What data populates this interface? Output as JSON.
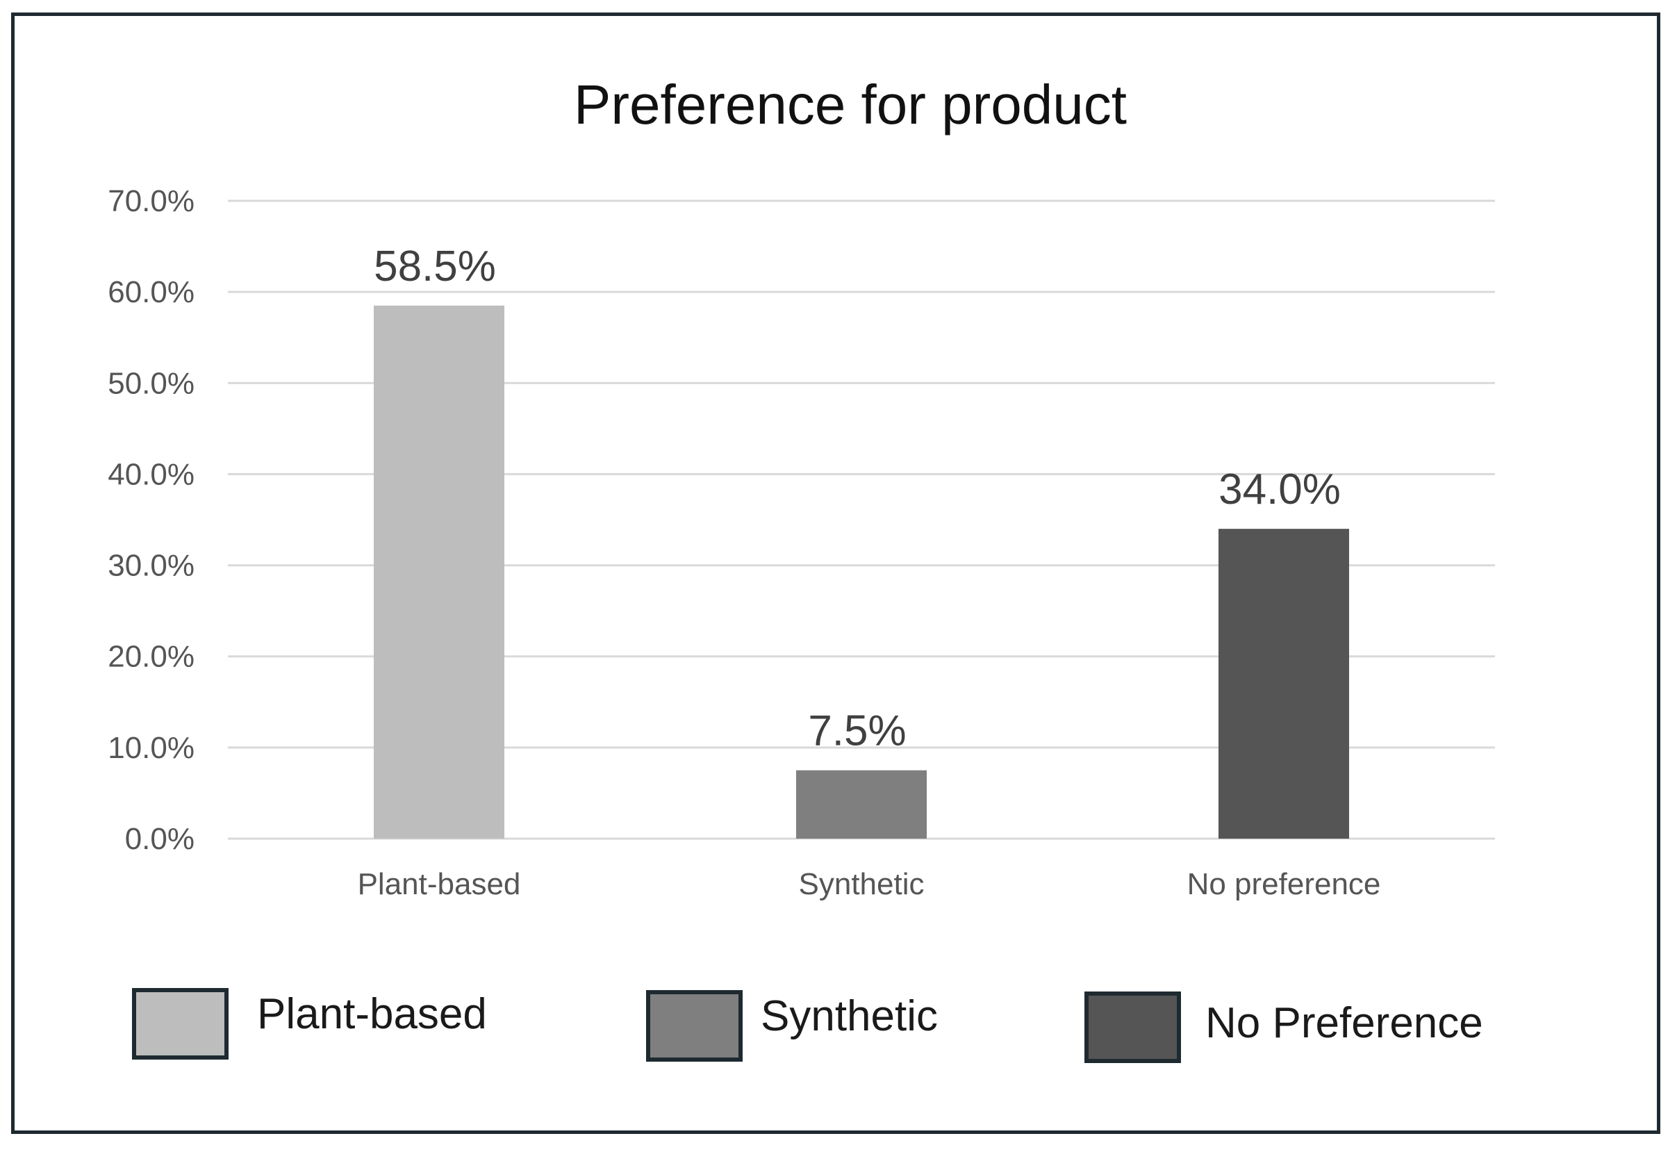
{
  "chart_data": {
    "type": "bar",
    "title": "Preference for product",
    "categories": [
      "Plant-based",
      "Synthetic",
      "No preference"
    ],
    "values": [
      58.5,
      7.5,
      34.0
    ],
    "data_labels": [
      "58.5%",
      "7.5%",
      "34.0%"
    ],
    "bar_colors": [
      "#bdbdbd",
      "#7f7f7f",
      "#555555"
    ],
    "ylim": [
      0,
      70
    ],
    "yticks": [
      0,
      10,
      20,
      30,
      40,
      50,
      60,
      70
    ],
    "ytick_labels": [
      "0.0%",
      "10.0%",
      "20.0%",
      "30.0%",
      "40.0%",
      "50.0%",
      "60.0%",
      "70.0%"
    ],
    "xlabel": "",
    "ylabel": "",
    "grid": true,
    "legend": {
      "position": "bottom",
      "entries": [
        {
          "label": "Plant-based",
          "color": "#bdbdbd"
        },
        {
          "label": "Synthetic",
          "color": "#7f7f7f"
        },
        {
          "label": "No Preference",
          "color": "#555555"
        }
      ]
    }
  }
}
